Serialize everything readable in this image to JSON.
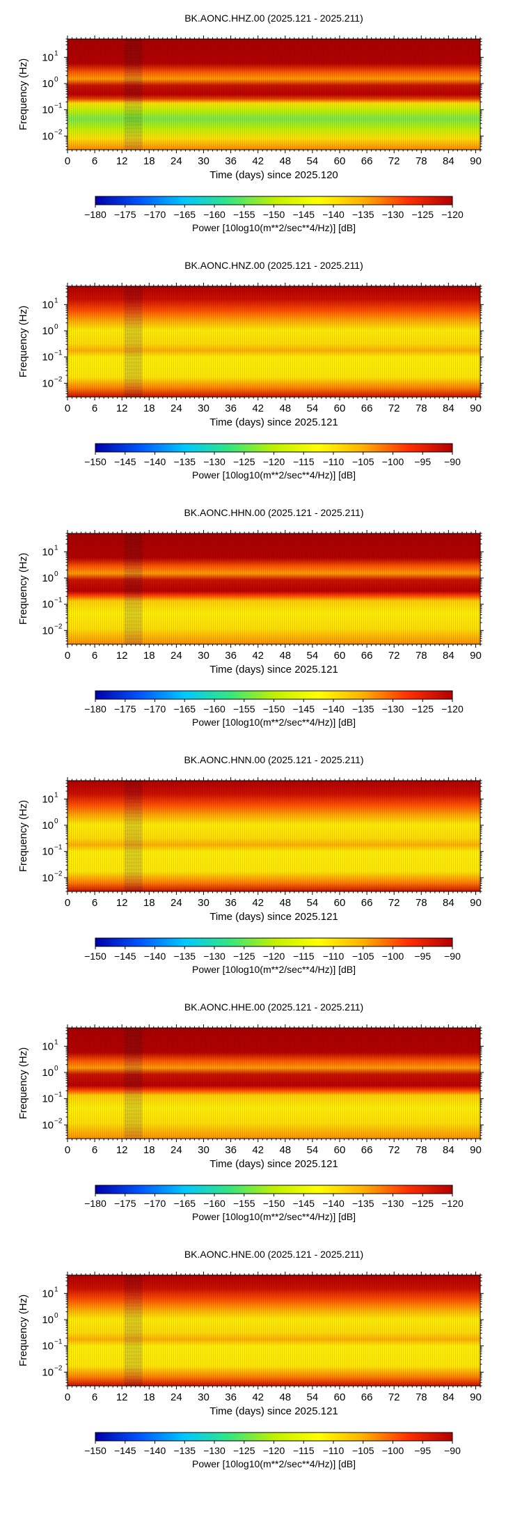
{
  "colormap": {
    "name": "jet-like",
    "stops": [
      "#0000aa",
      "#0055ff",
      "#00c8ff",
      "#33e680",
      "#bff000",
      "#ffff00",
      "#ffb000",
      "#ff3000",
      "#b40000"
    ]
  },
  "chart_data": [
    {
      "type": "heatmap",
      "title": "BK.AONC.HHZ.00 (2025.121 - 2025.211)",
      "xlabel": "Time (days) since 2025.120",
      "ylabel": "Frequency (Hz)",
      "x_ticks": [
        0,
        6,
        12,
        18,
        24,
        30,
        36,
        42,
        48,
        54,
        60,
        66,
        72,
        78,
        84,
        90
      ],
      "xlim": [
        0,
        91
      ],
      "y_scale": "log",
      "ylim": [
        0.003,
        50
      ],
      "y_ticks": [
        {
          "value": 10,
          "base": "10",
          "exp": "1"
        },
        {
          "value": 1,
          "base": "10",
          "exp": "0"
        },
        {
          "value": 0.1,
          "base": "10",
          "exp": "−1"
        },
        {
          "value": 0.01,
          "base": "10",
          "exp": "−2"
        }
      ],
      "colorbar": {
        "min": -180,
        "max": -120,
        "step": 5,
        "label": "Power [10log10(m**2/sec**4/Hz)] [dB]"
      },
      "dominant_power_db": -125
    },
    {
      "type": "heatmap",
      "title": "BK.AONC.HNZ.00 (2025.121 - 2025.211)",
      "xlabel": "Time (days) since 2025.121",
      "ylabel": "Frequency (Hz)",
      "x_ticks": [
        0,
        6,
        12,
        18,
        24,
        30,
        36,
        42,
        48,
        54,
        60,
        66,
        72,
        78,
        84,
        90
      ],
      "xlim": [
        0,
        91
      ],
      "y_scale": "log",
      "ylim": [
        0.003,
        50
      ],
      "y_ticks": [
        {
          "value": 10,
          "base": "10",
          "exp": "1"
        },
        {
          "value": 1,
          "base": "10",
          "exp": "0"
        },
        {
          "value": 0.1,
          "base": "10",
          "exp": "−1"
        },
        {
          "value": 0.01,
          "base": "10",
          "exp": "−2"
        }
      ],
      "colorbar": {
        "min": -150,
        "max": -90,
        "step": 5,
        "label": "Power [10log10(m**2/sec**4/Hz)] [dB]"
      },
      "dominant_power_db": -110
    },
    {
      "type": "heatmap",
      "title": "BK.AONC.HHN.00 (2025.121 - 2025.211)",
      "xlabel": "Time (days) since 2025.121",
      "ylabel": "Frequency (Hz)",
      "x_ticks": [
        0,
        6,
        12,
        18,
        24,
        30,
        36,
        42,
        48,
        54,
        60,
        66,
        72,
        78,
        84,
        90
      ],
      "xlim": [
        0,
        91
      ],
      "y_scale": "log",
      "ylim": [
        0.003,
        50
      ],
      "y_ticks": [
        {
          "value": 10,
          "base": "10",
          "exp": "1"
        },
        {
          "value": 1,
          "base": "10",
          "exp": "0"
        },
        {
          "value": 0.1,
          "base": "10",
          "exp": "−1"
        },
        {
          "value": 0.01,
          "base": "10",
          "exp": "−2"
        }
      ],
      "colorbar": {
        "min": -180,
        "max": -120,
        "step": 5,
        "label": "Power [10log10(m**2/sec**4/Hz)] [dB]"
      },
      "dominant_power_db": -125
    },
    {
      "type": "heatmap",
      "title": "BK.AONC.HNN.00 (2025.121 - 2025.211)",
      "xlabel": "Time (days) since 2025.121",
      "ylabel": "Frequency (Hz)",
      "x_ticks": [
        0,
        6,
        12,
        18,
        24,
        30,
        36,
        42,
        48,
        54,
        60,
        66,
        72,
        78,
        84,
        90
      ],
      "xlim": [
        0,
        91
      ],
      "y_scale": "log",
      "ylim": [
        0.003,
        50
      ],
      "y_ticks": [
        {
          "value": 10,
          "base": "10",
          "exp": "1"
        },
        {
          "value": 1,
          "base": "10",
          "exp": "0"
        },
        {
          "value": 0.1,
          "base": "10",
          "exp": "−1"
        },
        {
          "value": 0.01,
          "base": "10",
          "exp": "−2"
        }
      ],
      "colorbar": {
        "min": -150,
        "max": -90,
        "step": 5,
        "label": "Power [10log10(m**2/sec**4/Hz)] [dB]"
      },
      "dominant_power_db": -110
    },
    {
      "type": "heatmap",
      "title": "BK.AONC.HHE.00 (2025.121 - 2025.211)",
      "xlabel": "Time (days) since 2025.121",
      "ylabel": "Frequency (Hz)",
      "x_ticks": [
        0,
        6,
        12,
        18,
        24,
        30,
        36,
        42,
        48,
        54,
        60,
        66,
        72,
        78,
        84,
        90
      ],
      "xlim": [
        0,
        91
      ],
      "y_scale": "log",
      "ylim": [
        0.003,
        50
      ],
      "y_ticks": [
        {
          "value": 10,
          "base": "10",
          "exp": "1"
        },
        {
          "value": 1,
          "base": "10",
          "exp": "0"
        },
        {
          "value": 0.1,
          "base": "10",
          "exp": "−1"
        },
        {
          "value": 0.01,
          "base": "10",
          "exp": "−2"
        }
      ],
      "colorbar": {
        "min": -180,
        "max": -120,
        "step": 5,
        "label": "Power [10log10(m**2/sec**4/Hz)] [dB]"
      },
      "dominant_power_db": -125
    },
    {
      "type": "heatmap",
      "title": "BK.AONC.HNE.00 (2025.121 - 2025.211)",
      "xlabel": "Time (days) since 2025.121",
      "ylabel": "Frequency (Hz)",
      "x_ticks": [
        0,
        6,
        12,
        18,
        24,
        30,
        36,
        42,
        48,
        54,
        60,
        66,
        72,
        78,
        84,
        90
      ],
      "xlim": [
        0,
        91
      ],
      "y_scale": "log",
      "ylim": [
        0.003,
        50
      ],
      "y_ticks": [
        {
          "value": 10,
          "base": "10",
          "exp": "1"
        },
        {
          "value": 1,
          "base": "10",
          "exp": "0"
        },
        {
          "value": 0.1,
          "base": "10",
          "exp": "−1"
        },
        {
          "value": 0.01,
          "base": "10",
          "exp": "−2"
        }
      ],
      "colorbar": {
        "min": -150,
        "max": -90,
        "step": 5,
        "label": "Power [10log10(m**2/sec**4/Hz)] [dB]"
      },
      "dominant_power_db": -110
    }
  ]
}
